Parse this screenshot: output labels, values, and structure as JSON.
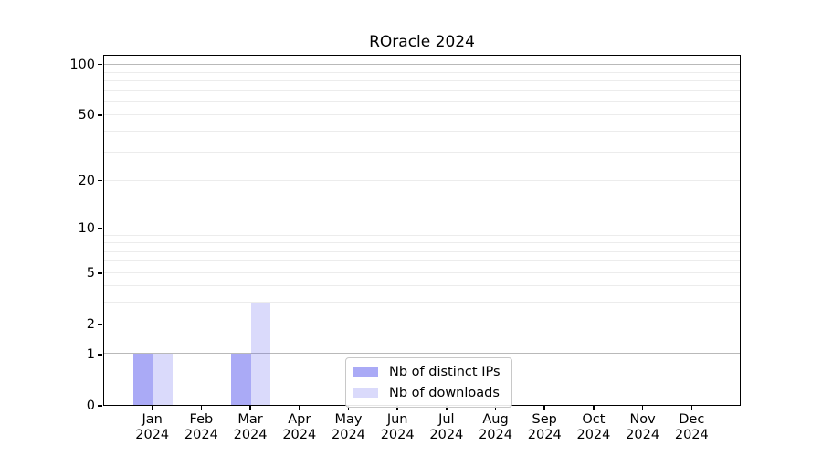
{
  "chart_data": {
    "type": "bar",
    "title": "ROracle 2024",
    "xlabel": "",
    "ylabel": "",
    "yscale": "log1p",
    "ylim": [
      0,
      114
    ],
    "grid": "on",
    "legend_position": "lower center",
    "year_label": "2024",
    "categories": [
      "Jan",
      "Feb",
      "Mar",
      "Apr",
      "May",
      "Jun",
      "Jul",
      "Aug",
      "Sep",
      "Oct",
      "Nov",
      "Dec"
    ],
    "series": [
      {
        "name": "Nb of distinct IPs",
        "color": "rgba(85,85,238,0.5)",
        "values": [
          1,
          0,
          1,
          0,
          0,
          0,
          0,
          0,
          0,
          0,
          0,
          0
        ]
      },
      {
        "name": "Nb of downloads",
        "color": "rgba(85,85,238,0.22)",
        "values": [
          1,
          0,
          3,
          0,
          0,
          0,
          0,
          0,
          0,
          0,
          0,
          0
        ]
      }
    ],
    "y_ticks": [
      0,
      1,
      2,
      5,
      10,
      20,
      50,
      100
    ],
    "y_major_gridlines": [
      1,
      10,
      100
    ],
    "y_minor_gridlines": [
      2,
      3,
      4,
      5,
      6,
      7,
      8,
      9,
      20,
      30,
      40,
      50,
      60,
      70,
      80,
      90
    ]
  },
  "colors": {
    "major_grid": "#b9b9b9",
    "minor_grid": "#ececec",
    "spine": "#000000",
    "legend_border": "#c8c8c8"
  }
}
